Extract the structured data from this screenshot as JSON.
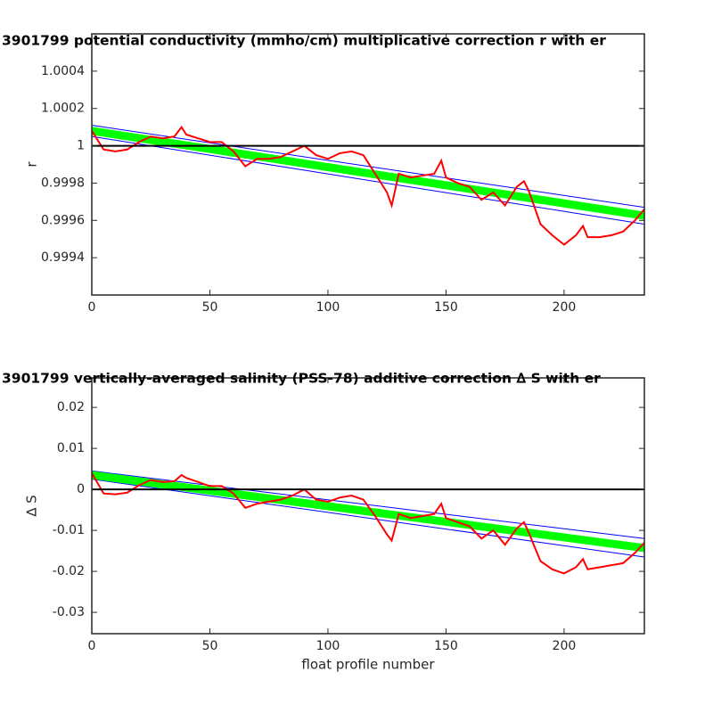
{
  "chart_data": [
    {
      "type": "line",
      "title": "3901799 potential conductivity (mmho/cm) multiplicative correction r with er",
      "ylabel": "r",
      "xlim": [
        0,
        234
      ],
      "xticks": [
        0,
        50,
        100,
        150,
        200
      ],
      "ylim": [
        0.9992,
        1.0006
      ],
      "yticks": [
        1.0004,
        1.0002,
        1,
        0.9998,
        0.9996,
        0.9994
      ],
      "hline": 1,
      "hline_color": "#000000",
      "series": [
        {
          "color": "#0000ff",
          "width": 1,
          "x": [
            0,
            234
          ],
          "values": [
            1.00011,
            0.99967
          ]
        },
        {
          "color": "#0000ff",
          "width": 1,
          "x": [
            0,
            234
          ],
          "values": [
            1.00005,
            0.99958
          ]
        },
        {
          "color": "#00ff00",
          "width": 9,
          "x": [
            0,
            234
          ],
          "values": [
            1.00008,
            0.999625
          ]
        },
        {
          "color": "#ff0000",
          "width": 2,
          "x": [
            0,
            5,
            10,
            15,
            20,
            25,
            30,
            35,
            38,
            40,
            45,
            50,
            55,
            60,
            65,
            70,
            75,
            80,
            85,
            90,
            95,
            100,
            105,
            110,
            115,
            120,
            125,
            127,
            130,
            135,
            140,
            145,
            148,
            150,
            155,
            160,
            165,
            170,
            175,
            180,
            183,
            185,
            190,
            195,
            200,
            205,
            208,
            210,
            215,
            220,
            225,
            230,
            234
          ],
          "values": [
            1.00008,
            0.99998,
            0.99997,
            0.99998,
            1.00002,
            1.00005,
            1.00004,
            1.00005,
            1.0001,
            1.00006,
            1.00004,
            1.00002,
            1.00002,
            0.99997,
            0.99989,
            0.99993,
            0.99993,
            0.99994,
            0.99997,
            1.0,
            0.99995,
            0.99993,
            0.99996,
            0.99997,
            0.99995,
            0.99985,
            0.99975,
            0.99968,
            0.99985,
            0.99983,
            0.99984,
            0.99985,
            0.99992,
            0.99983,
            0.9998,
            0.99978,
            0.99971,
            0.99975,
            0.99968,
            0.99978,
            0.99981,
            0.99976,
            0.99958,
            0.99952,
            0.99947,
            0.99952,
            0.99957,
            0.99951,
            0.99951,
            0.99952,
            0.99954,
            0.9996,
            0.99966
          ]
        }
      ]
    },
    {
      "type": "line",
      "title": "3901799 vertically-averaged salinity (PSS-78) additive correction ∆ S with er",
      "ylabel": "∆ S",
      "xlabel": "float profile number",
      "xlim": [
        0,
        234
      ],
      "xticks": [
        0,
        50,
        100,
        150,
        200
      ],
      "ylim": [
        -0.0352,
        0.0272
      ],
      "yticks": [
        0.02,
        0.01,
        0,
        -0.01,
        -0.02,
        -0.03
      ],
      "hline": 0,
      "hline_color": "#000000",
      "series": [
        {
          "color": "#0000ff",
          "width": 1,
          "x": [
            0,
            234
          ],
          "values": [
            0.0045,
            -0.012
          ]
        },
        {
          "color": "#0000ff",
          "width": 1,
          "x": [
            0,
            234
          ],
          "values": [
            0.0025,
            -0.0165
          ]
        },
        {
          "color": "#00ff00",
          "width": 9,
          "x": [
            0,
            234
          ],
          "values": [
            0.0035,
            -0.0143
          ]
        },
        {
          "color": "#ff0000",
          "width": 2,
          "x": [
            0,
            5,
            10,
            15,
            20,
            25,
            30,
            35,
            38,
            40,
            45,
            50,
            55,
            60,
            65,
            70,
            75,
            80,
            85,
            90,
            95,
            100,
            105,
            110,
            115,
            120,
            125,
            127,
            130,
            135,
            140,
            145,
            148,
            150,
            155,
            160,
            165,
            170,
            175,
            180,
            183,
            185,
            190,
            195,
            200,
            205,
            208,
            210,
            215,
            220,
            225,
            230,
            234
          ],
          "values": [
            0.004,
            -0.001,
            -0.0012,
            -0.0008,
            0.001,
            0.0023,
            0.0018,
            0.002,
            0.0035,
            0.0028,
            0.0018,
            0.0008,
            0.0008,
            -0.001,
            -0.0045,
            -0.0035,
            -0.003,
            -0.0025,
            -0.0015,
            0.0,
            -0.0025,
            -0.003,
            -0.002,
            -0.0015,
            -0.0025,
            -0.0065,
            -0.011,
            -0.0125,
            -0.006,
            -0.007,
            -0.0065,
            -0.006,
            -0.0035,
            -0.007,
            -0.008,
            -0.009,
            -0.012,
            -0.01,
            -0.0135,
            -0.0095,
            -0.008,
            -0.0105,
            -0.0175,
            -0.0195,
            -0.0205,
            -0.019,
            -0.017,
            -0.0195,
            -0.019,
            -0.0185,
            -0.018,
            -0.0155,
            -0.013
          ]
        }
      ]
    }
  ]
}
